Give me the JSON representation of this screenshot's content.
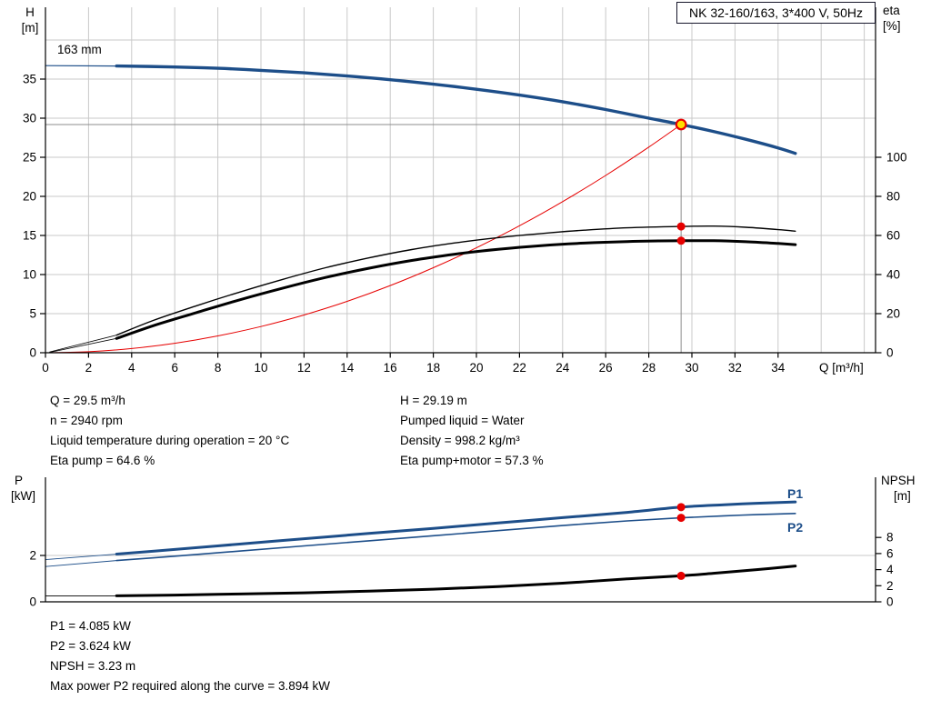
{
  "colors": {
    "blue": "#1d4e89",
    "red": "#e60000",
    "yellow": "#ffdf00",
    "grid": "#c9c9c9",
    "duty": "#8c8c8c",
    "axis": "#000000"
  },
  "title_box": {
    "text": "NK 32-160/163, 3*400 V, 50Hz"
  },
  "top_chart": {
    "y_left_unit": [
      "H",
      "[m]"
    ],
    "y_right_unit": [
      "eta",
      "[%]"
    ],
    "impeller_label": "163 mm"
  },
  "bottom_chart": {
    "y_left_unit": [
      "P",
      "[kW]"
    ],
    "y_right_unit": [
      "NPSH",
      "[m]"
    ],
    "p1_label": "P1",
    "p2_label": "P2"
  },
  "info_top": {
    "left": [
      "Q = 29.5 m³/h",
      "n = 2940 rpm",
      "Liquid temperature during operation = 20 °C",
      "Eta pump = 64.6 %"
    ],
    "right": [
      "H = 29.19 m",
      "Pumped liquid = Water",
      "Density = 998.2 kg/m³",
      "Eta pump+motor = 57.3 %"
    ]
  },
  "info_bottom": [
    "P1 = 4.085 kW",
    "P2 = 3.624 kW",
    "NPSH = 3.23 m",
    "Max power P2 required along the curve = 3.894 kW"
  ],
  "chart_data": [
    {
      "type": "line",
      "title": "Pump head and efficiency vs flow",
      "x": {
        "label": "Q [m³/h]",
        "ticks": [
          0,
          2,
          4,
          6,
          8,
          10,
          12,
          14,
          16,
          18,
          20,
          22,
          24,
          26,
          28,
          30,
          32,
          34
        ],
        "grid_step": 2,
        "grid_max": 38
      },
      "y_left": {
        "label": "H [m]",
        "ticks": [
          0,
          5,
          10,
          15,
          20,
          25,
          30,
          35
        ],
        "grid": [
          5,
          10,
          15,
          20,
          25,
          30,
          35,
          40
        ],
        "range": [
          0,
          44
        ]
      },
      "y_right": {
        "label": "eta [%]",
        "ticks": [
          0,
          20,
          40,
          60,
          80,
          100
        ],
        "range": [
          0,
          176
        ]
      },
      "duty_point": {
        "q": 29.5,
        "h": 29.19
      },
      "series": [
        {
          "name": "head-curve-leadin",
          "axis": "H",
          "color": "#1d4e89",
          "width": 1.2,
          "points": [
            [
              0,
              36.72
            ],
            [
              3.3,
              36.68
            ]
          ]
        },
        {
          "name": "head-curve",
          "axis": "H",
          "color": "#1d4e89",
          "width": 3.4,
          "points": [
            [
              3.3,
              36.68
            ],
            [
              6,
              36.55
            ],
            [
              8,
              36.38
            ],
            [
              10,
              36.12
            ],
            [
              12,
              35.8
            ],
            [
              14,
              35.4
            ],
            [
              16,
              34.92
            ],
            [
              18,
              34.35
            ],
            [
              20,
              33.7
            ],
            [
              22,
              32.95
            ],
            [
              24,
              32.1
            ],
            [
              26,
              31.1
            ],
            [
              28,
              30.0
            ],
            [
              29.5,
              29.19
            ],
            [
              31,
              28.3
            ],
            [
              32.5,
              27.3
            ],
            [
              34,
              26.2
            ],
            [
              34.8,
              25.5
            ]
          ]
        },
        {
          "name": "affinity-parabola",
          "axis": "H",
          "color": "#e60000",
          "width": 1,
          "points": [
            [
              0,
              0
            ],
            [
              2,
              0.13
            ],
            [
              4,
              0.54
            ],
            [
              6,
              1.21
            ],
            [
              8,
              2.15
            ],
            [
              10,
              3.35
            ],
            [
              12,
              4.83
            ],
            [
              14,
              6.57
            ],
            [
              16,
              8.59
            ],
            [
              18,
              10.87
            ],
            [
              20,
              13.42
            ],
            [
              22,
              16.24
            ],
            [
              24,
              19.32
            ],
            [
              26,
              22.68
            ],
            [
              28,
              26.3
            ],
            [
              29.5,
              29.19
            ]
          ]
        },
        {
          "name": "eta-pump-curve-leadin",
          "axis": "ETA",
          "color": "#000000",
          "width": 0.8,
          "points": [
            [
              0.2,
              0.4
            ],
            [
              3.3,
              9
            ]
          ]
        },
        {
          "name": "eta-pump-curve",
          "axis": "ETA",
          "color": "#000000",
          "width": 1.4,
          "points": [
            [
              3.3,
              9
            ],
            [
              5,
              16.5
            ],
            [
              7,
              24
            ],
            [
              9,
              31
            ],
            [
              11,
              37.5
            ],
            [
              13,
              43.5
            ],
            [
              15,
              48.5
            ],
            [
              17,
              52.8
            ],
            [
              19,
              56.2
            ],
            [
              21,
              58.9
            ],
            [
              23,
              61
            ],
            [
              25,
              62.7
            ],
            [
              27,
              63.9
            ],
            [
              29.5,
              64.6
            ],
            [
              31,
              64.8
            ],
            [
              32.5,
              64.2
            ],
            [
              34,
              63
            ],
            [
              34.8,
              62.2
            ]
          ]
        },
        {
          "name": "eta-pump-motor-curve-leadin",
          "axis": "ETA",
          "color": "#000000",
          "width": 0.8,
          "points": [
            [
              0.2,
              0.2
            ],
            [
              3.3,
              7.3
            ]
          ]
        },
        {
          "name": "eta-pump-motor-curve",
          "axis": "ETA",
          "color": "#000000",
          "width": 3,
          "points": [
            [
              3.3,
              7.3
            ],
            [
              5,
              13.8
            ],
            [
              7,
              20.5
            ],
            [
              9,
              27
            ],
            [
              11,
              33
            ],
            [
              13,
              38.5
            ],
            [
              15,
              43.2
            ],
            [
              17,
              47.2
            ],
            [
              19,
              50.4
            ],
            [
              21,
              52.9
            ],
            [
              23,
              54.8
            ],
            [
              25,
              56.1
            ],
            [
              27,
              56.9
            ],
            [
              29.5,
              57.3
            ],
            [
              31,
              57.3
            ],
            [
              32.5,
              56.8
            ],
            [
              34,
              55.9
            ],
            [
              34.8,
              55.3
            ]
          ]
        }
      ],
      "markers": [
        {
          "q": 29.5,
          "axis": "ETA",
          "v": 64.6
        },
        {
          "q": 29.5,
          "axis": "ETA",
          "v": 57.3
        }
      ]
    },
    {
      "type": "line",
      "title": "Power and NPSH vs flow",
      "y_left": {
        "label": "P [kW]",
        "ticks": [
          0,
          2
        ],
        "grid": [
          2
        ]
      },
      "y_right": {
        "label": "NPSH [m]",
        "ticks": [
          0,
          2,
          4,
          6,
          8
        ]
      },
      "series": [
        {
          "name": "p1-curve-leadin",
          "axis": "P",
          "color": "#1d4e89",
          "width": 0.9,
          "points": [
            [
              0,
              1.82
            ],
            [
              3.3,
              2.06
            ]
          ]
        },
        {
          "name": "p1-curve",
          "axis": "P",
          "color": "#1d4e89",
          "width": 3,
          "points": [
            [
              3.3,
              2.06
            ],
            [
              6,
              2.26
            ],
            [
              9,
              2.49
            ],
            [
              12,
              2.72
            ],
            [
              15,
              2.95
            ],
            [
              18,
              3.17
            ],
            [
              21,
              3.4
            ],
            [
              24,
              3.63
            ],
            [
              27,
              3.86
            ],
            [
              29.5,
              4.085
            ],
            [
              31.5,
              4.19
            ],
            [
              33,
              4.25
            ],
            [
              34.8,
              4.31
            ]
          ]
        },
        {
          "name": "p2-curve-leadin",
          "axis": "P",
          "color": "#1d4e89",
          "width": 0.9,
          "points": [
            [
              0,
              1.52
            ],
            [
              3.3,
              1.78
            ]
          ]
        },
        {
          "name": "p2-curve",
          "axis": "P",
          "color": "#1d4e89",
          "width": 1.6,
          "points": [
            [
              3.3,
              1.78
            ],
            [
              6,
              1.97
            ],
            [
              9,
              2.19
            ],
            [
              12,
              2.41
            ],
            [
              15,
              2.63
            ],
            [
              18,
              2.85
            ],
            [
              21,
              3.07
            ],
            [
              24,
              3.29
            ],
            [
              27,
              3.49
            ],
            [
              29.5,
              3.624
            ],
            [
              31.5,
              3.71
            ],
            [
              33,
              3.76
            ],
            [
              34.8,
              3.81
            ]
          ]
        },
        {
          "name": "npsh-curve-leadin",
          "axis": "N",
          "color": "#000000",
          "width": 0.9,
          "points": [
            [
              0,
              0.72
            ],
            [
              3.3,
              0.75
            ]
          ]
        },
        {
          "name": "npsh-curve",
          "axis": "N",
          "color": "#000000",
          "width": 3,
          "points": [
            [
              3.3,
              0.75
            ],
            [
              6,
              0.84
            ],
            [
              9,
              0.97
            ],
            [
              12,
              1.12
            ],
            [
              15,
              1.32
            ],
            [
              18,
              1.57
            ],
            [
              21,
              1.9
            ],
            [
              24,
              2.32
            ],
            [
              27,
              2.85
            ],
            [
              29.5,
              3.23
            ],
            [
              31,
              3.55
            ],
            [
              33,
              4.0
            ],
            [
              34.8,
              4.45
            ]
          ]
        }
      ],
      "markers": [
        {
          "q": 29.5,
          "axis": "P",
          "v": 4.085
        },
        {
          "q": 29.5,
          "axis": "P",
          "v": 3.624
        },
        {
          "q": 29.5,
          "axis": "N",
          "v": 3.23
        }
      ]
    }
  ]
}
